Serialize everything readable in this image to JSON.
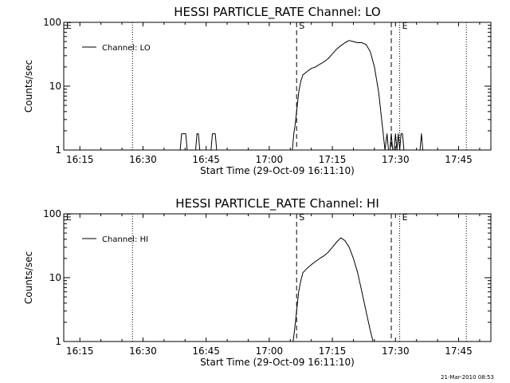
{
  "footer": {
    "timestamp": "21-Mar-2010 08:53"
  },
  "chart_data": [
    {
      "type": "line",
      "title": "HESSI PARTICLE_RATE Channel: LO",
      "xlabel": "Start Time (29-Oct-09 16:11:10)",
      "ylabel": "Counts/sec",
      "yscale": "log",
      "ylim": [
        1,
        100
      ],
      "xlim": [
        "16:11:10",
        "17:52:40"
      ],
      "x_tick_labels": [
        "16:15",
        "16:30",
        "16:45",
        "17:00",
        "17:15",
        "17:30",
        "17:45"
      ],
      "y_tick_labels": [
        "1",
        "10",
        "100"
      ],
      "legend": {
        "position": "top-left",
        "entries": [
          "Channel: LO"
        ]
      },
      "markers": [
        {
          "label": "E",
          "time": "16:11:10",
          "style": "dotted"
        },
        {
          "label": "",
          "time": "16:27:30",
          "style": "dotted"
        },
        {
          "label": "S",
          "time": "17:06:30",
          "style": "dashed"
        },
        {
          "label": "",
          "time": "17:29:00",
          "style": "dashed"
        },
        {
          "label": "E",
          "time": "17:31:00",
          "style": "dotted"
        },
        {
          "label": "",
          "time": "17:46:50",
          "style": "dotted"
        }
      ],
      "series": [
        {
          "name": "Channel: LO",
          "x": [
            "16:38:50",
            "16:39:10",
            "16:39:30",
            "16:40:10",
            "16:40:30",
            "16:42:30",
            "16:42:50",
            "16:43:10",
            "16:43:30",
            "16:46:10",
            "16:46:30",
            "16:46:50",
            "16:47:10",
            "16:47:30",
            "17:05:30",
            "17:05:50",
            "17:06:10",
            "17:06:30",
            "17:07:00",
            "17:07:30",
            "17:08:00",
            "17:09:00",
            "17:10:00",
            "17:11:00",
            "17:12:00",
            "17:13:00",
            "17:14:00",
            "17:15:00",
            "17:16:00",
            "17:17:00",
            "17:18:00",
            "17:19:00",
            "17:20:00",
            "17:21:00",
            "17:22:00",
            "17:23:00",
            "17:24:00",
            "17:25:00",
            "17:26:00",
            "17:27:00",
            "17:27:30",
            "17:28:00",
            "17:28:20",
            "17:28:40",
            "17:29:00",
            "17:29:20",
            "17:29:40",
            "17:30:00",
            "17:30:20",
            "17:30:40",
            "17:31:00",
            "17:31:20",
            "17:31:40",
            "17:32:00",
            "17:32:20",
            "17:35:50",
            "17:36:10",
            "17:36:30"
          ],
          "values": [
            1,
            1.8,
            1.8,
            1.8,
            1,
            1,
            1.8,
            1.8,
            1,
            1,
            1.8,
            1.8,
            1.8,
            1,
            1,
            1.8,
            2.5,
            4,
            8,
            12,
            15,
            17,
            19,
            20,
            22,
            24,
            27,
            32,
            38,
            43,
            48,
            52,
            50,
            48,
            48,
            45,
            35,
            20,
            8,
            2,
            1,
            1.8,
            1,
            1,
            1.8,
            1,
            1,
            1.8,
            1,
            1.8,
            1,
            1.8,
            1.8,
            1,
            1,
            1,
            1.8,
            1
          ]
        }
      ]
    },
    {
      "type": "line",
      "title": "HESSI PARTICLE_RATE Channel: HI",
      "xlabel": "Start Time (29-Oct-09 16:11:10)",
      "ylabel": "Counts/sec",
      "yscale": "log",
      "ylim": [
        1,
        100
      ],
      "xlim": [
        "16:11:10",
        "17:52:40"
      ],
      "x_tick_labels": [
        "16:15",
        "16:30",
        "16:45",
        "17:00",
        "17:15",
        "17:30",
        "17:45"
      ],
      "y_tick_labels": [
        "1",
        "10",
        "100"
      ],
      "legend": {
        "position": "top-left",
        "entries": [
          "Channel: HI"
        ]
      },
      "markers": [
        {
          "label": "E",
          "time": "16:11:10",
          "style": "dotted"
        },
        {
          "label": "",
          "time": "16:27:30",
          "style": "dotted"
        },
        {
          "label": "S",
          "time": "17:06:30",
          "style": "dashed"
        },
        {
          "label": "",
          "time": "17:29:00",
          "style": "dashed"
        },
        {
          "label": "E",
          "time": "17:31:00",
          "style": "dotted"
        },
        {
          "label": "",
          "time": "17:46:50",
          "style": "dotted"
        }
      ],
      "series": [
        {
          "name": "Channel: HI",
          "x": [
            "17:05:40",
            "17:06:00",
            "17:06:30",
            "17:07:00",
            "17:07:30",
            "17:08:00",
            "17:09:00",
            "17:10:00",
            "17:11:00",
            "17:12:00",
            "17:13:00",
            "17:14:00",
            "17:15:00",
            "17:16:00",
            "17:17:00",
            "17:18:00",
            "17:19:00",
            "17:20:00",
            "17:21:00",
            "17:22:00",
            "17:23:00",
            "17:24:00",
            "17:24:40"
          ],
          "values": [
            1,
            1.5,
            3,
            6,
            9,
            12,
            14,
            16,
            18,
            20,
            22,
            25,
            30,
            36,
            42,
            38,
            30,
            20,
            12,
            6,
            3,
            1.5,
            1
          ]
        }
      ]
    }
  ]
}
